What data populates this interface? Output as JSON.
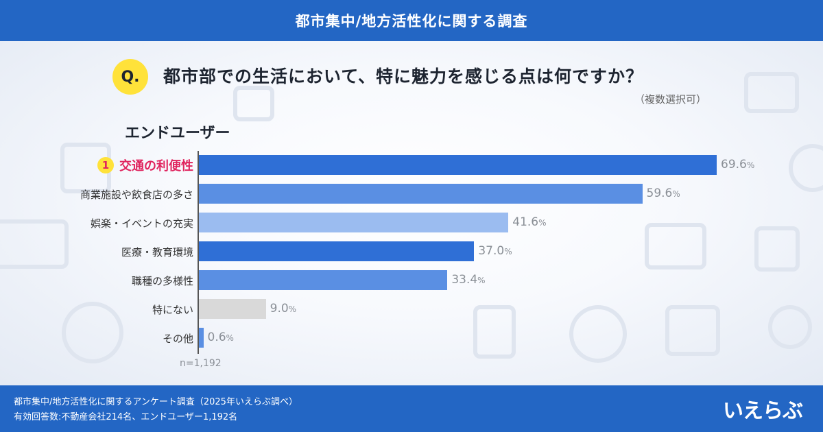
{
  "header": {
    "title": "都市集中/地方活性化に関する調査"
  },
  "question": {
    "badge": "Q.",
    "text": "都市部での生活において、特に魅力を感じる点は何ですか？",
    "note": "（複数選択可）"
  },
  "segment_title": "エンドユーザー",
  "chart_data": {
    "type": "bar",
    "orientation": "horizontal",
    "categories": [
      "交通の利便性",
      "商業施設や飲食店の多さ",
      "娯楽・イベントの充実",
      "医療・教育環境",
      "職種の多様性",
      "特にない",
      "その他"
    ],
    "values": [
      69.6,
      59.6,
      41.6,
      37.0,
      33.4,
      9.0,
      0.6
    ],
    "value_labels": [
      "69.6",
      "59.6",
      "41.6",
      "37.0",
      "33.4",
      "9.0",
      "0.6"
    ],
    "unit": "%",
    "bar_colors": [
      "#2f6fd6",
      "#5a8fe3",
      "#9bbcf0",
      "#2f6fd6",
      "#5a8fe3",
      "#d9d9d9",
      "#5a8fe3"
    ],
    "top_rank": "1",
    "top_color": "#e0245e",
    "xlim": [
      0,
      70
    ],
    "grid": false,
    "legend": "none"
  },
  "n_label": "n=1,192",
  "footer": {
    "line1": "都市集中/地方活性化に関するアンケート調査（2025年いえらぶ調べ）",
    "line2": "有効回答数:不動産会社214名、エンドユーザー1,192名",
    "logo": "いえらぶ"
  },
  "colors": {
    "brand": "#2366c4",
    "accent": "#ffe23a"
  }
}
